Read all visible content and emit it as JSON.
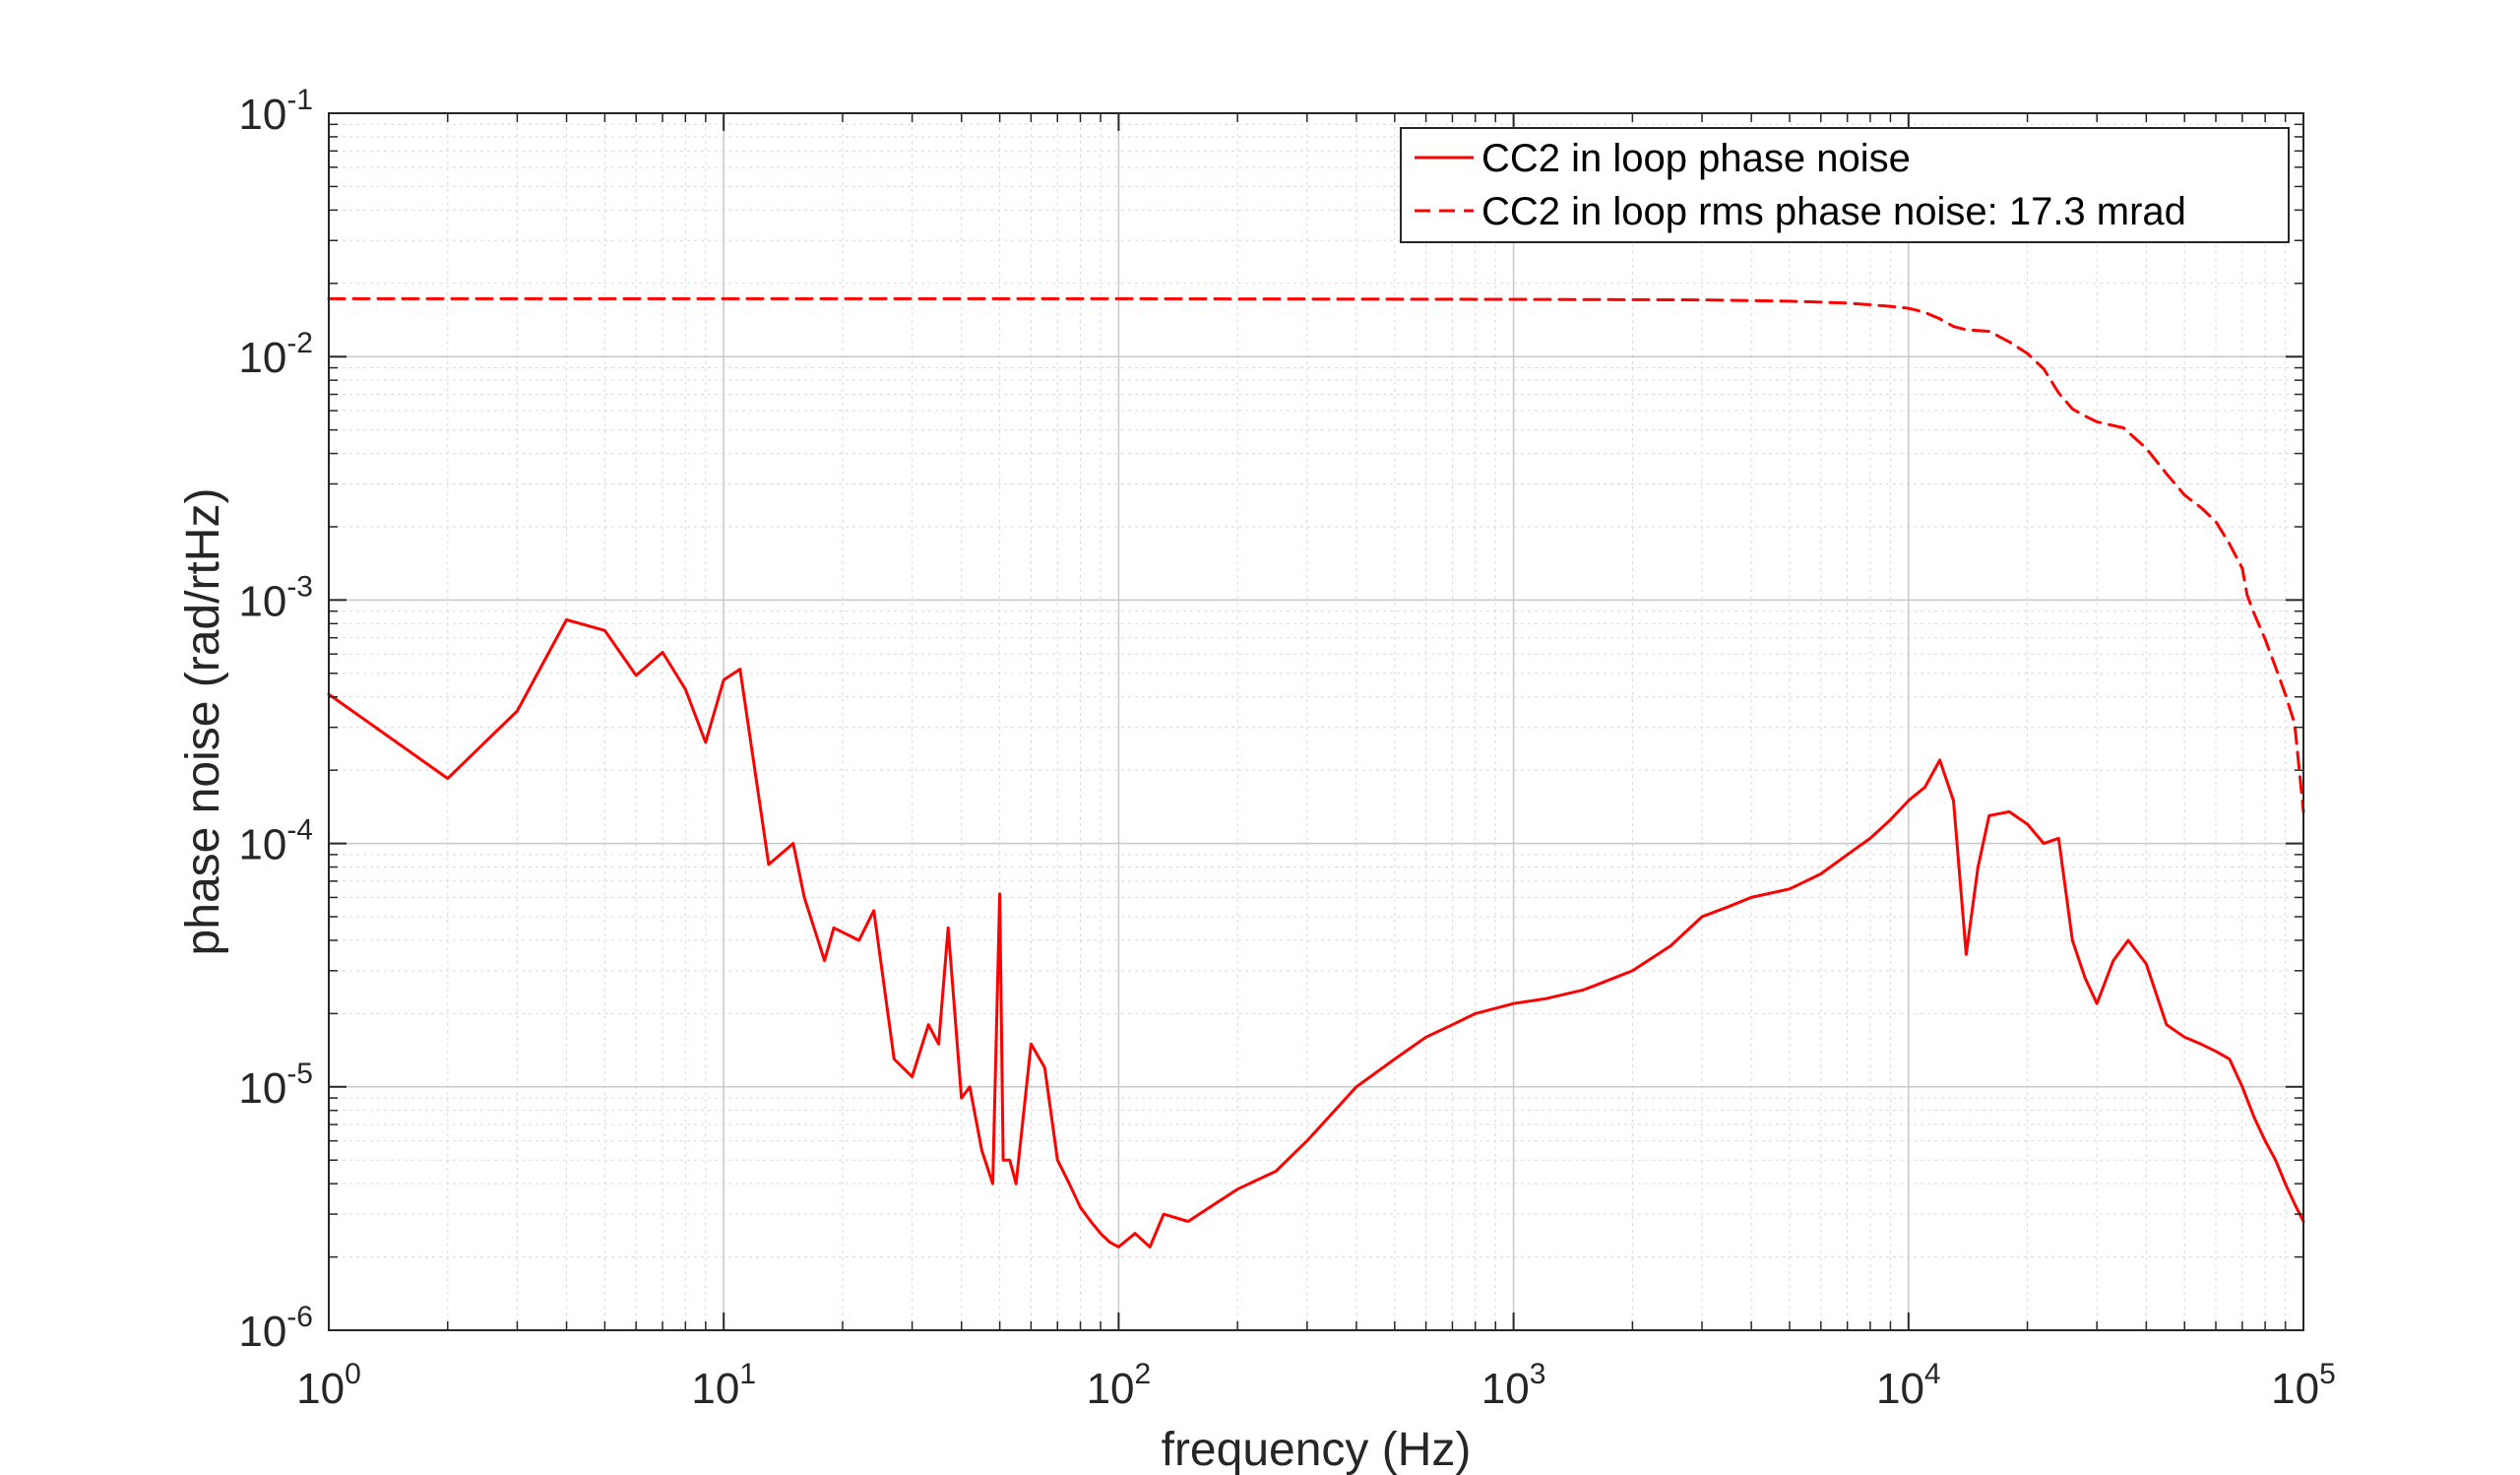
{
  "chart_data": {
    "type": "line",
    "title": "",
    "xlabel": "frequency (Hz)",
    "ylabel": "phase noise (rad/rtHz)",
    "xscale": "log",
    "yscale": "log",
    "xlim": [
      1,
      100000
    ],
    "ylim": [
      1e-06,
      0.1
    ],
    "grid": true,
    "minor_grid": true,
    "legend_position": "top-right",
    "x_ticks": [
      {
        "base": "10",
        "exp": "0"
      },
      {
        "base": "10",
        "exp": "1"
      },
      {
        "base": "10",
        "exp": "2"
      },
      {
        "base": "10",
        "exp": "3"
      },
      {
        "base": "10",
        "exp": "4"
      },
      {
        "base": "10",
        "exp": "5"
      }
    ],
    "y_ticks": [
      {
        "base": "10",
        "exp": "-1"
      },
      {
        "base": "10",
        "exp": "-2"
      },
      {
        "base": "10",
        "exp": "-3"
      },
      {
        "base": "10",
        "exp": "-4"
      },
      {
        "base": "10",
        "exp": "-5"
      },
      {
        "base": "10",
        "exp": "-6"
      }
    ],
    "series": [
      {
        "name": "CC2 in loop phase noise",
        "color": "#ff0000",
        "style": "solid",
        "x": [
          1,
          2,
          3,
          4,
          5,
          6,
          7,
          8,
          9,
          10,
          11,
          13,
          15,
          16,
          18,
          19,
          22,
          24,
          27,
          30,
          33,
          35,
          37,
          40,
          42,
          45,
          48,
          50,
          51,
          53,
          55,
          60,
          65,
          70,
          75,
          80,
          85,
          90,
          95,
          100,
          110,
          120,
          130,
          150,
          170,
          200,
          250,
          300,
          400,
          500,
          600,
          700,
          800,
          1000,
          1200,
          1500,
          1600,
          2000,
          2500,
          3000,
          3500,
          4000,
          5000,
          6000,
          7000,
          8000,
          9000,
          10000,
          11000,
          12000,
          13000,
          14000,
          15000,
          16000,
          18000,
          20000,
          22000,
          24000,
          26000,
          28000,
          30000,
          33000,
          36000,
          40000,
          45000,
          50000,
          55000,
          60000,
          65000,
          70000,
          75000,
          80000,
          85000,
          90000,
          95000,
          100000
        ],
        "y": [
          0.00041,
          0.000185,
          0.00035,
          0.00083,
          0.00075,
          0.00049,
          0.00061,
          0.00043,
          0.00026,
          0.00047,
          0.00052,
          8.2e-05,
          0.0001,
          6e-05,
          3.3e-05,
          4.5e-05,
          4e-05,
          5.3e-05,
          1.3e-05,
          1.1e-05,
          1.8e-05,
          1.5e-05,
          4.5e-05,
          9e-06,
          1e-05,
          5.5e-06,
          4e-06,
          6.2e-05,
          5e-06,
          5e-06,
          4e-06,
          1.5e-05,
          1.2e-05,
          5e-06,
          4e-06,
          3.2e-06,
          2.8e-06,
          2.5e-06,
          2.3e-06,
          2.2e-06,
          2.5e-06,
          2.2e-06,
          3e-06,
          2.8e-06,
          3.2e-06,
          3.8e-06,
          4.5e-06,
          6e-06,
          1e-05,
          1.3e-05,
          1.6e-05,
          1.8e-05,
          2e-05,
          2.2e-05,
          2.3e-05,
          2.5e-05,
          2.6e-05,
          3e-05,
          3.8e-05,
          5e-05,
          5.5e-05,
          6e-05,
          6.5e-05,
          7.5e-05,
          9e-05,
          0.000105,
          0.000125,
          0.00015,
          0.00017,
          0.00022,
          0.00015,
          3.5e-05,
          8e-05,
          0.00013,
          0.000135,
          0.00012,
          0.0001,
          0.000105,
          4e-05,
          2.8e-05,
          2.2e-05,
          3.3e-05,
          4e-05,
          3.2e-05,
          1.8e-05,
          1.6e-05,
          1.5e-05,
          1.4e-05,
          1.3e-05,
          1e-05,
          7.5e-06,
          6e-06,
          5e-06,
          4e-06,
          3.3e-06,
          2.8e-06
        ]
      },
      {
        "name": "CC2 in loop rms phase noise: 17.3 mrad",
        "color": "#ff0000",
        "style": "dashed",
        "x": [
          1,
          10,
          100,
          1000,
          3000,
          5000,
          7000,
          9000,
          10000,
          11000,
          12000,
          13000,
          14000,
          16000,
          18000,
          20000,
          22000,
          24000,
          26000,
          28000,
          30000,
          35000,
          40000,
          45000,
          50000,
          55000,
          60000,
          65000,
          70000,
          72000,
          75000,
          80000,
          85000,
          90000,
          95000,
          100000
        ],
        "y": [
          0.0173,
          0.0173,
          0.0173,
          0.0172,
          0.0171,
          0.0169,
          0.0166,
          0.0161,
          0.0158,
          0.0152,
          0.0143,
          0.0133,
          0.0129,
          0.0127,
          0.0115,
          0.0103,
          0.0089,
          0.0071,
          0.0061,
          0.0057,
          0.0054,
          0.0051,
          0.0042,
          0.0033,
          0.0027,
          0.0024,
          0.0021,
          0.0017,
          0.00135,
          0.00105,
          0.00088,
          0.00069,
          0.00053,
          0.00041,
          0.00031,
          0.000135
        ]
      }
    ]
  }
}
